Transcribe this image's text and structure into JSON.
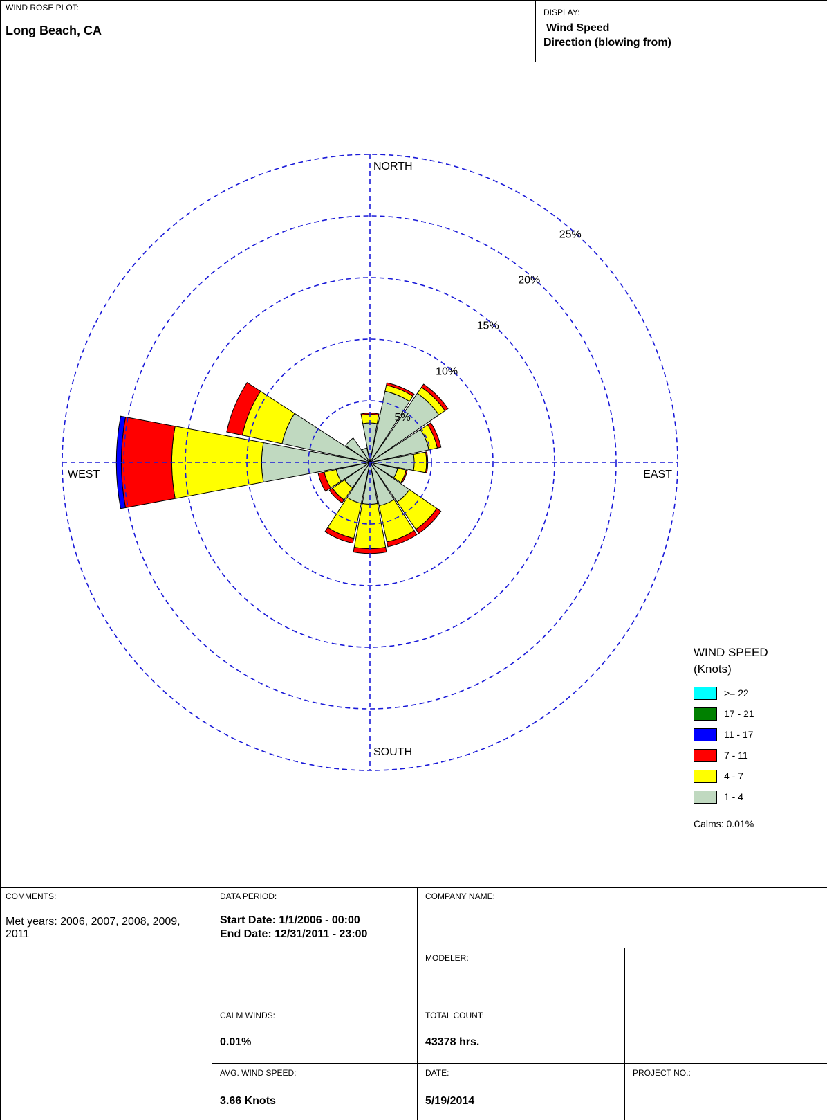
{
  "header": {
    "plot_caption": "WIND ROSE PLOT:",
    "station": "Long Beach, CA",
    "display_caption": "DISPLAY:",
    "display_line1": "Wind Speed",
    "display_line2": "Direction (blowing from)"
  },
  "chart_data": {
    "type": "wind-rose",
    "directions": [
      "N",
      "NNE",
      "NE",
      "ENE",
      "E",
      "ESE",
      "SE",
      "SSE",
      "S",
      "SSW",
      "SW",
      "WSW",
      "W",
      "WNW",
      "NW",
      "NNW"
    ],
    "bins": [
      {
        "label": "1 - 4",
        "color": "#c0d9c0"
      },
      {
        "label": "4 - 7",
        "color": "#ffff00"
      },
      {
        "label": "7 - 11",
        "color": "#ff0000"
      },
      {
        "label": "11 - 17",
        "color": "#0000ff"
      },
      {
        "label": "17 - 21",
        "color": "#008000"
      },
      {
        "label": ">= 22",
        "color": "#00ffff"
      }
    ],
    "cumulative_percent": [
      [
        3.2,
        3.9,
        4.0,
        4.0,
        4.0,
        4.0
      ],
      [
        5.9,
        6.4,
        6.6,
        6.6,
        6.6,
        6.6
      ],
      [
        6.8,
        7.4,
        7.7,
        7.7,
        7.7,
        7.7
      ],
      [
        4.9,
        5.6,
        5.9,
        5.9,
        5.9,
        5.9
      ],
      [
        3.6,
        4.6,
        4.7,
        4.7,
        4.7,
        4.7
      ],
      [
        2.3,
        3.0,
        3.1,
        3.1,
        3.1,
        3.1
      ],
      [
        3.9,
        6.6,
        7.0,
        7.0,
        7.0,
        7.0
      ],
      [
        3.6,
        6.6,
        7.0,
        7.0,
        7.0,
        7.0
      ],
      [
        3.4,
        7.0,
        7.4,
        7.4,
        7.4,
        7.4
      ],
      [
        3.4,
        6.3,
        6.7,
        6.7,
        6.7,
        6.7
      ],
      [
        2.5,
        3.7,
        4.0,
        4.0,
        4.0,
        4.0
      ],
      [
        2.8,
        3.8,
        4.3,
        4.3,
        4.3,
        4.3
      ],
      [
        8.8,
        16.1,
        20.2,
        20.6,
        20.6,
        20.6
      ],
      [
        7.3,
        10.6,
        11.9,
        11.9,
        11.9,
        11.9
      ],
      [
        2.4,
        2.4,
        2.4,
        2.4,
        2.4,
        2.4
      ],
      [
        1.2,
        1.2,
        1.2,
        1.2,
        1.2,
        1.2
      ]
    ],
    "rings_percent": [
      5,
      10,
      15,
      20,
      25
    ],
    "ring_labels": [
      "5%",
      "10%",
      "15%",
      "20%",
      "25%"
    ],
    "compass_labels": {
      "north": "NORTH",
      "south": "SOUTH",
      "east": "EAST",
      "west": "WEST"
    },
    "grid": true,
    "grid_color": "#1a1ad8"
  },
  "legend": {
    "title_line1": "WIND SPEED",
    "title_line2": "(Knots)",
    "items": [
      {
        "label": ">= 22",
        "color": "#00ffff"
      },
      {
        "label": "17 - 21",
        "color": "#008000"
      },
      {
        "label": "11 - 17",
        "color": "#0000ff"
      },
      {
        "label": "7 - 11",
        "color": "#ff0000"
      },
      {
        "label": "4 - 7",
        "color": "#ffff00"
      },
      {
        "label": "1 - 4",
        "color": "#c0d9c0"
      }
    ],
    "calms": "Calms: 0.01%"
  },
  "footer": {
    "comments_caption": "COMMENTS:",
    "comments_text": "Met years: 2006, 2007, 2008, 2009, 2011",
    "period_caption": "DATA PERIOD:",
    "start_date": "Start Date: 1/1/2006 - 00:00",
    "end_date": "End Date: 12/31/2011 - 23:00",
    "company_caption": "COMPANY NAME:",
    "modeler_caption": "MODELER:",
    "calm_caption": "CALM WINDS:",
    "calm_value": "0.01%",
    "count_caption": "TOTAL COUNT:",
    "count_value": "43378 hrs.",
    "avg_caption": "AVG. WIND SPEED:",
    "avg_value": "3.66 Knots",
    "date_caption": "DATE:",
    "date_value": "5/19/2014",
    "project_caption": "PROJECT NO.:"
  }
}
